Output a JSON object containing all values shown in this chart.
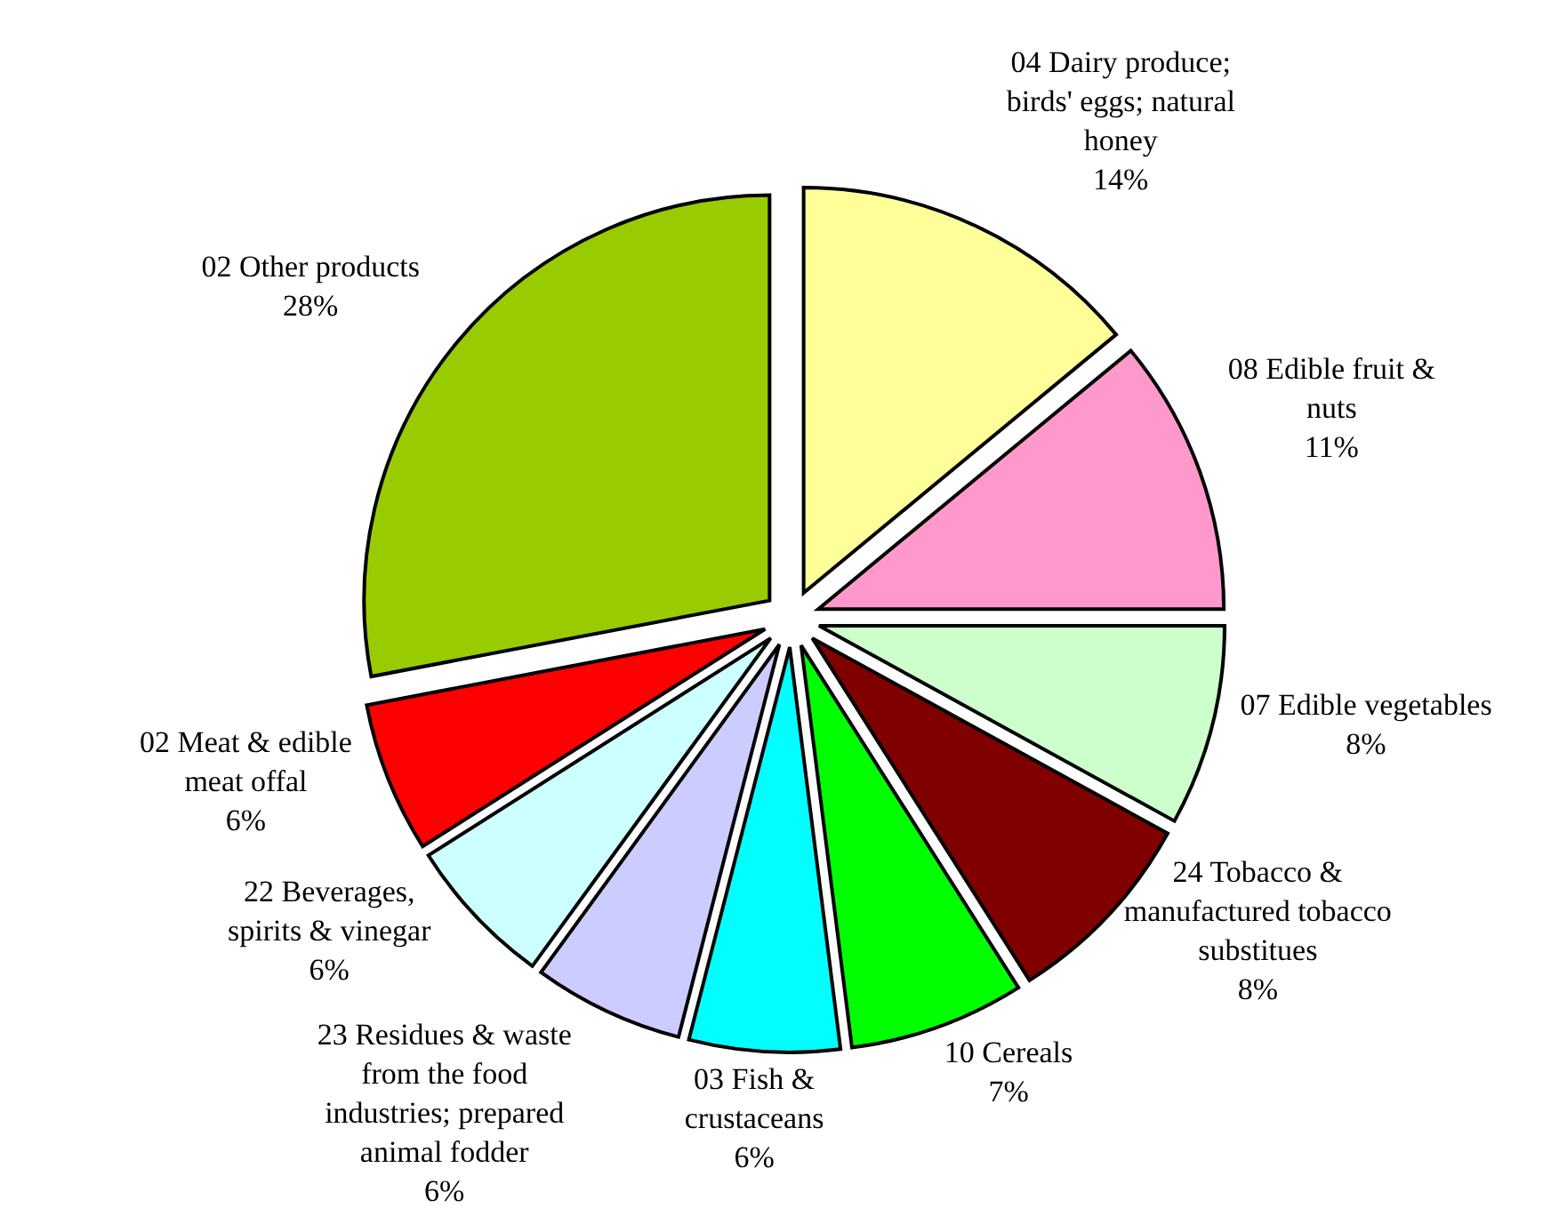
{
  "chart_data": {
    "type": "pie",
    "categories": [
      "04 Dairy produce; birds' eggs; natural honey",
      "08 Edible fruit & nuts",
      "07 Edible vegetables",
      "24 Tobacco & manufactured tobacco substitues",
      "10 Cereals",
      "03 Fish & crustaceans",
      "23 Residues & waste from the food industries; prepared animal fodder",
      "22 Beverages, spirits & vinegar",
      "02 Meat & edible meat offal",
      "02 Other products"
    ],
    "values": [
      14,
      11,
      8,
      8,
      7,
      6,
      6,
      6,
      6,
      28
    ],
    "value_labels": [
      "14%",
      "11%",
      "8%",
      "8%",
      "7%",
      "6%",
      "6%",
      "6%",
      "6%",
      "28%"
    ],
    "colors": [
      "#ffff99",
      "#ff99cc",
      "#ccffcc",
      "#800000",
      "#00ff00",
      "#00ffff",
      "#ccccff",
      "#ccffff",
      "#ff0000",
      "#99cc00"
    ],
    "legend": false
  }
}
